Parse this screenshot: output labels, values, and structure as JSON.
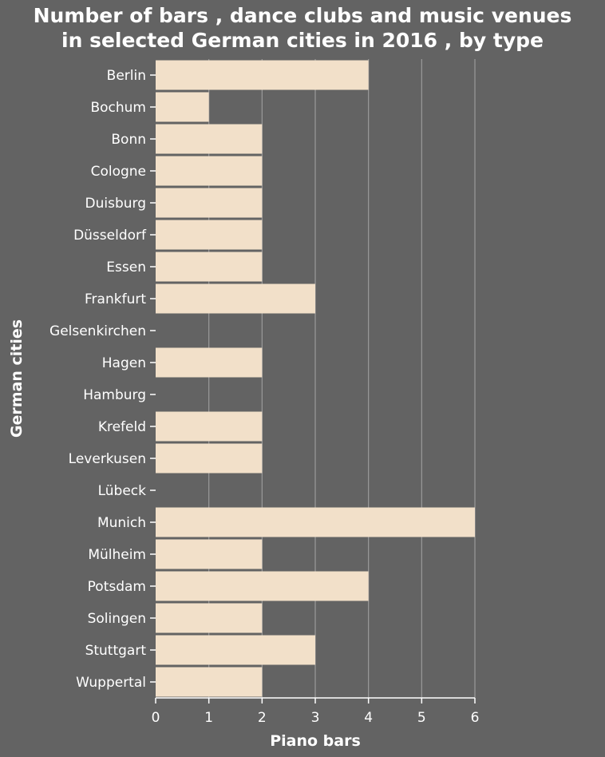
{
  "chart_data": {
    "type": "bar",
    "orientation": "horizontal",
    "title_lines": [
      "Number of bars , dance clubs and music venues",
      "in selected German cities in 2016 , by type"
    ],
    "xlabel": "Piano bars",
    "ylabel": "German cities",
    "xlim": [
      0,
      6
    ],
    "xticks": [
      "0",
      "1",
      "2",
      "3",
      "4",
      "5",
      "6"
    ],
    "categories": [
      "Berlin",
      "Bochum",
      "Bonn",
      "Cologne",
      "Duisburg",
      "Düsseldorf",
      "Essen",
      "Frankfurt",
      "Gelsenkirchen",
      "Hagen",
      "Hamburg",
      "Krefeld",
      "Leverkusen",
      "Lübeck",
      "Munich",
      "Mülheim",
      "Potsdam",
      "Solingen",
      "Stuttgart",
      "Wuppertal"
    ],
    "values": [
      4,
      1,
      2,
      2,
      2,
      2,
      2,
      3,
      0,
      2,
      0,
      2,
      2,
      0,
      6,
      2,
      4,
      2,
      3,
      2
    ],
    "grid": true,
    "colors": {
      "background": "#636363",
      "bar": "#f2e0c9",
      "grid": "#9a9a9a",
      "text": "#ffffff"
    }
  }
}
